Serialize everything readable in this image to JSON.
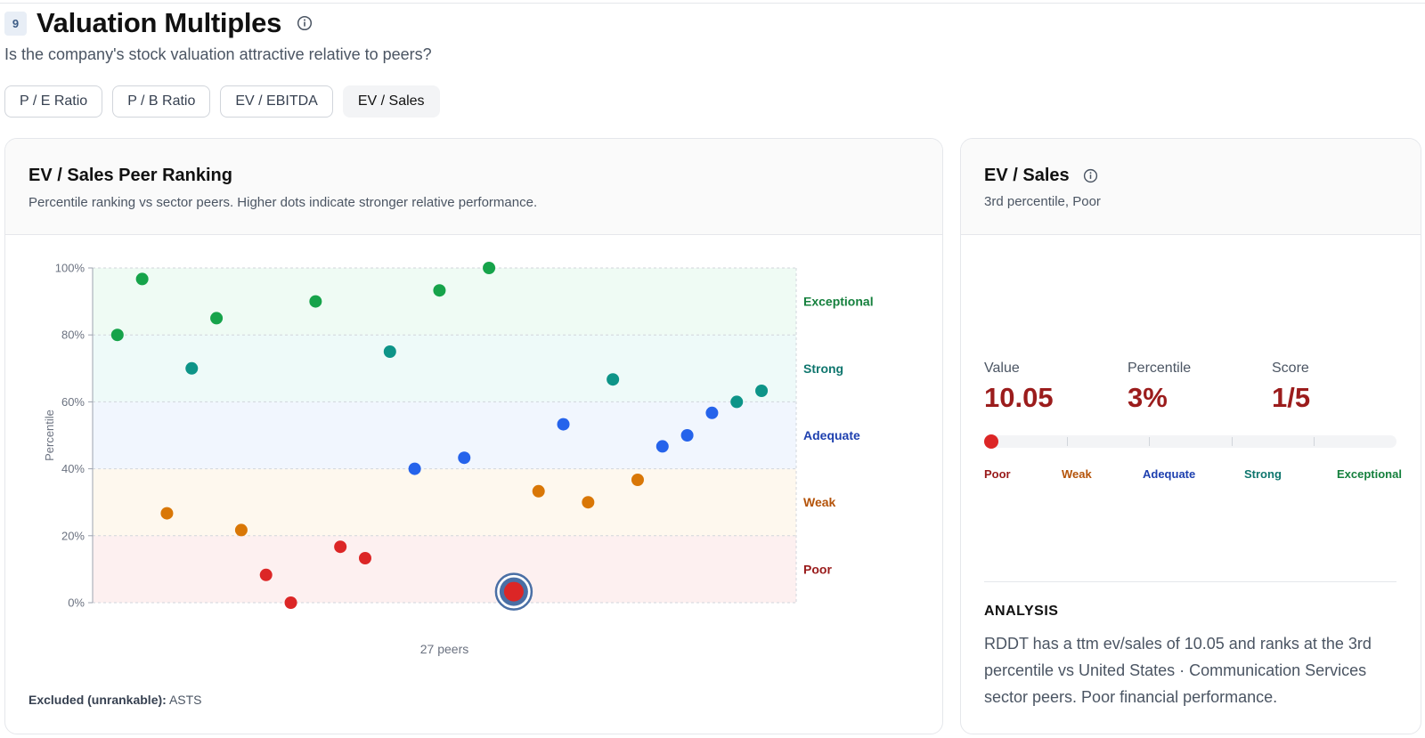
{
  "section": {
    "number": "9",
    "title": "Valuation Multiples",
    "subtitle": "Is the company's stock valuation attractive relative to peers?"
  },
  "tabs": [
    {
      "label": "P / E Ratio",
      "active": false
    },
    {
      "label": "P / B Ratio",
      "active": false
    },
    {
      "label": "EV / EBITDA",
      "active": false
    },
    {
      "label": "EV / Sales",
      "active": true
    }
  ],
  "chart_card": {
    "title": "EV / Sales Peer Ranking",
    "description": "Percentile ranking vs sector peers. Higher dots indicate stronger relative performance.",
    "excluded_label": "Excluded (unrankable):",
    "excluded_value": "ASTS"
  },
  "chart_data": {
    "type": "scatter",
    "ylabel": "Percentile",
    "xlabel": "27 peers",
    "ylim": [
      0,
      100
    ],
    "yticks": [
      "0%",
      "20%",
      "40%",
      "60%",
      "80%",
      "100%"
    ],
    "grid": true,
    "bands": [
      {
        "name": "Poor",
        "range": [
          0,
          20
        ],
        "color": "#dc2626",
        "label_color": "#991b1b"
      },
      {
        "name": "Weak",
        "range": [
          20,
          40
        ],
        "color": "#f59e0b",
        "label_color": "#b45309"
      },
      {
        "name": "Adequate",
        "range": [
          40,
          60
        ],
        "color": "#3b82f6",
        "label_color": "#1e40af"
      },
      {
        "name": "Strong",
        "range": [
          60,
          80
        ],
        "color": "#14b8a6",
        "label_color": "#0f766e"
      },
      {
        "name": "Exceptional",
        "range": [
          80,
          100
        ],
        "color": "#22c55e",
        "label_color": "#15803d"
      }
    ],
    "point_colors": {
      "Poor": "#dc2626",
      "Weak": "#d97706",
      "Adequate": "#2563eb",
      "Strong": "#0d9488",
      "Exceptional": "#16a34a"
    },
    "highlight_ring_color": "#4a6fa5",
    "points": [
      {
        "x": 1,
        "y": 80
      },
      {
        "x": 2,
        "y": 96.7
      },
      {
        "x": 3,
        "y": 26.7
      },
      {
        "x": 4,
        "y": 70
      },
      {
        "x": 5,
        "y": 85
      },
      {
        "x": 6,
        "y": 21.7
      },
      {
        "x": 7,
        "y": 8.3
      },
      {
        "x": 8,
        "y": 0
      },
      {
        "x": 9,
        "y": 90
      },
      {
        "x": 10,
        "y": 16.7
      },
      {
        "x": 11,
        "y": 13.3
      },
      {
        "x": 12,
        "y": 75
      },
      {
        "x": 13,
        "y": 40
      },
      {
        "x": 14,
        "y": 93.3
      },
      {
        "x": 15,
        "y": 43.3
      },
      {
        "x": 16,
        "y": 100
      },
      {
        "x": 17,
        "y": 3.3,
        "highlight": true
      },
      {
        "x": 18,
        "y": 33.3
      },
      {
        "x": 19,
        "y": 53.3
      },
      {
        "x": 20,
        "y": 30
      },
      {
        "x": 21,
        "y": 66.7
      },
      {
        "x": 22,
        "y": 36.7
      },
      {
        "x": 23,
        "y": 46.7
      },
      {
        "x": 24,
        "y": 50
      },
      {
        "x": 25,
        "y": 56.7
      },
      {
        "x": 26,
        "y": 60
      },
      {
        "x": 27,
        "y": 63.3
      }
    ]
  },
  "metric_card": {
    "title": "EV / Sales",
    "subtitle": "3rd percentile, Poor",
    "metrics": [
      {
        "label": "Value",
        "value": "10.05"
      },
      {
        "label": "Percentile",
        "value": "3%"
      },
      {
        "label": "Score",
        "value": "1/5"
      }
    ],
    "rank_fraction": 0.0,
    "rank_labels": [
      {
        "label": "Poor",
        "color": "#991b1b"
      },
      {
        "label": "Weak",
        "color": "#b45309"
      },
      {
        "label": "Adequate",
        "color": "#1e40af"
      },
      {
        "label": "Strong",
        "color": "#0f766e"
      },
      {
        "label": "Exceptional",
        "color": "#15803d"
      }
    ],
    "analysis_title": "ANALYSIS",
    "analysis_text": "RDDT has a ttm ev/sales of 10.05 and ranks at the 3rd percentile vs United States · Communication Services sector peers. Poor financial performance."
  }
}
